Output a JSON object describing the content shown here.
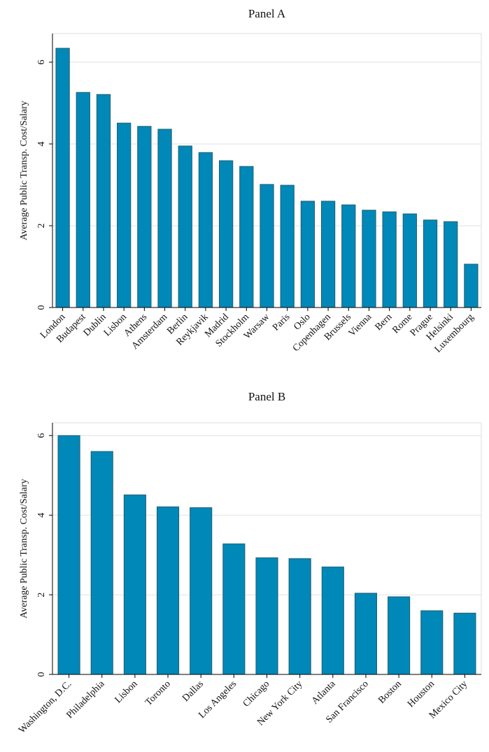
{
  "chart_data": [
    {
      "type": "bar",
      "title": "Panel A",
      "y_label": "Average Public Transp. Cost/Salary",
      "categories": [
        "London",
        "Budapest",
        "Dublin",
        "Lisbon",
        "Athens",
        "Amsterdam",
        "Berlin",
        "Reykjavik",
        "Madrid",
        "Stockholm",
        "Warsaw",
        "Paris",
        "Oslo",
        "Copenhagen",
        "Brussels",
        "Vienna",
        "Bern",
        "Rome",
        "Prague",
        "Helsinki",
        "Luxembourg"
      ],
      "values": [
        6.34,
        5.26,
        5.21,
        4.51,
        4.43,
        4.36,
        3.95,
        3.79,
        3.59,
        3.45,
        3.01,
        2.99,
        2.6,
        2.6,
        2.51,
        2.38,
        2.34,
        2.29,
        2.14,
        2.1,
        1.06
      ],
      "color": "#0088b8",
      "edgecolor": "#1f5f6e",
      "ylim": [
        0,
        6.7
      ],
      "yticks": [
        0,
        2,
        4,
        6
      ],
      "grid": true
    },
    {
      "type": "bar",
      "title": "Panel B",
      "y_label": "Average Public Transp. Cost/Salary",
      "categories": [
        "Washington, D.C.",
        "Philadelphia",
        "Lisbon",
        "Toronto",
        "Dallas",
        "Los Angeles",
        "Chicago",
        "New York City",
        "Atlanta",
        "San Francisco",
        "Boston",
        "Houston",
        "Mexico City"
      ],
      "values": [
        6.0,
        5.6,
        4.51,
        4.21,
        4.19,
        3.28,
        2.93,
        2.91,
        2.7,
        2.04,
        1.95,
        1.6,
        1.54
      ],
      "color": "#0088b8",
      "edgecolor": "#1f5f6e",
      "ylim": [
        0,
        6.32
      ],
      "yticks": [
        0,
        2,
        4,
        6
      ],
      "grid": true
    }
  ]
}
